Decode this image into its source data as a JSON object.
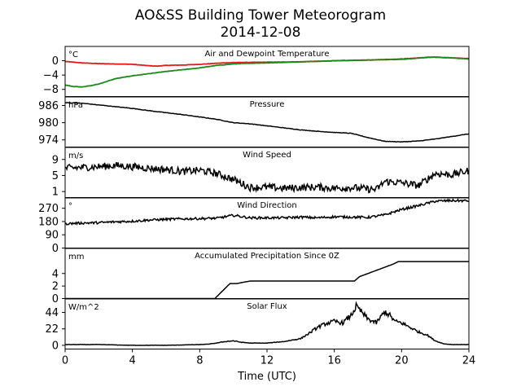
{
  "title_line1": "AO&SS Building Tower Meteorogram",
  "title_line2": "2014-12-08",
  "chart_data": {
    "type": "line",
    "xlabel": "Time (UTC)",
    "xlim": [
      0,
      24
    ],
    "xticks": [
      0,
      4,
      8,
      12,
      16,
      20,
      24
    ],
    "panels": [
      {
        "title": "Air and Dewpoint Temperature",
        "unit": "°C",
        "ylim": [
          -10,
          4
        ],
        "yticks": [
          0,
          -4,
          -8
        ],
        "series": [
          {
            "color": "#e31a1c",
            "x": [
              0,
              1,
              2,
              3,
              4,
              5,
              5.5,
              6,
              7,
              8,
              9,
              10,
              12,
              14,
              16,
              18,
              20,
              21,
              22,
              23,
              24
            ],
            "y": [
              -0.2,
              -0.6,
              -0.8,
              -0.9,
              -1.0,
              -1.4,
              -1.5,
              -1.3,
              -1.2,
              -1.0,
              -0.7,
              -0.5,
              -0.4,
              -0.3,
              0,
              0.2,
              0.5,
              0.8,
              1.0,
              0.8,
              0.6
            ]
          },
          {
            "color": "#1a8a1a",
            "x": [
              0,
              0.5,
              1,
              1.5,
              2,
              3,
              4,
              5,
              6,
              7,
              8,
              9,
              10,
              11,
              12,
              14,
              16,
              18,
              20,
              21,
              21.5,
              22,
              23,
              24
            ],
            "y": [
              -6.8,
              -7.2,
              -7.3,
              -7.0,
              -6.5,
              -5.0,
              -4.2,
              -3.6,
              -3.0,
              -2.5,
              -2.0,
              -1.3,
              -0.9,
              -0.7,
              -0.6,
              -0.3,
              0.0,
              0.2,
              0.4,
              0.7,
              1.0,
              1.0,
              0.8,
              0.5
            ]
          }
        ]
      },
      {
        "title": "Pressure",
        "unit": "hPa",
        "ylim": [
          971.5,
          989
        ],
        "yticks": [
          986,
          980,
          974
        ],
        "series": [
          {
            "color": "#000000",
            "x": [
              0,
              1,
              2,
              3,
              4,
              5,
              6,
              7,
              8,
              9,
              10,
              11,
              12,
              13,
              14,
              15,
              16,
              17,
              18,
              19,
              20,
              21,
              22,
              23,
              24
            ],
            "y": [
              987.0,
              986.8,
              986.2,
              985.6,
              985.0,
              984.2,
              983.5,
              982.8,
              982.0,
              981.2,
              980.0,
              979.6,
              978.9,
              978.2,
              977.5,
              977.0,
              976.6,
              976.3,
              974.8,
              973.5,
              973.3,
              973.6,
              974.3,
              975.2,
              976.1
            ]
          }
        ]
      },
      {
        "title": "Wind Speed",
        "unit": "m/s",
        "ylim": [
          -0.5,
          12
        ],
        "yticks": [
          9,
          5,
          1
        ],
        "series": [
          {
            "color": "#000000",
            "x": [
              0,
              1,
              2,
              3,
              4,
              5,
              6,
              7,
              8,
              9,
              10,
              11,
              12,
              13,
              14,
              15,
              16,
              17,
              18,
              18.5,
              19,
              20,
              21,
              22,
              23,
              24
            ],
            "y": [
              6.8,
              7.0,
              7.2,
              7.5,
              7.2,
              6.8,
              6.5,
              6.0,
              6.3,
              5.5,
              4.0,
              2.0,
              2.1,
              1.8,
              2.0,
              2.1,
              1.8,
              2.0,
              1.6,
              1.5,
              3.5,
              3.2,
              2.5,
              5.5,
              5.2,
              6.2
            ]
          }
        ]
      },
      {
        "title": "Wind Direction",
        "unit": "°",
        "ylim": [
          0,
          340
        ],
        "yticks": [
          270,
          180,
          90,
          0
        ],
        "series": [
          {
            "color": "#000000",
            "x": [
              0,
              1,
              2,
              3,
              4,
              5,
              6,
              7,
              8,
              9,
              10,
              11,
              12,
              13,
              14,
              15,
              16,
              17,
              18,
              19,
              20,
              21,
              22,
              23,
              24
            ],
            "y": [
              165,
              170,
              172,
              178,
              182,
              190,
              195,
              198,
              200,
              202,
              222,
              205,
              205,
              205,
              210,
              205,
              212,
              210,
              208,
              225,
              262,
              288,
              318,
              322,
              320
            ]
          }
        ]
      },
      {
        "title": "Accumulated Precipitation Since 0Z",
        "unit": "mm",
        "ylim": [
          0,
          8
        ],
        "yticks": [
          4,
          2,
          0
        ],
        "series": [
          {
            "color": "#000000",
            "x": [
              0,
              8.9,
              9.2,
              9.5,
              9.8,
              10.2,
              11,
              12,
              13,
              14,
              15,
              16,
              17.2,
              17.5,
              17.8,
              18.2,
              18.6,
              19.0,
              19.5,
              19.8,
              20.2,
              21,
              22,
              23,
              24
            ],
            "y": [
              0,
              0,
              0.8,
              1.6,
              2.4,
              2.4,
              2.8,
              2.8,
              2.8,
              2.8,
              2.8,
              2.8,
              2.8,
              3.5,
              3.8,
              4.2,
              4.6,
              5.0,
              5.5,
              5.9,
              5.9,
              5.9,
              5.9,
              5.9,
              5.9
            ]
          }
        ]
      },
      {
        "title": "Solar Flux",
        "unit": "W/m^2",
        "ylim": [
          -5,
          62
        ],
        "yticks": [
          44,
          22,
          0
        ],
        "series": [
          {
            "color": "#000000",
            "x": [
              0,
              1,
              2,
              3,
              4,
              5,
              6,
              7,
              8,
              8.5,
              9,
              9.5,
              10,
              10.5,
              11,
              12,
              13,
              14,
              14.5,
              15,
              15.5,
              16,
              16.5,
              17,
              17.3,
              17.6,
              18,
              18.5,
              19,
              19.3,
              19.6,
              20,
              20.5,
              21,
              21.5,
              22,
              22.5,
              23,
              24
            ],
            "y": [
              1,
              1,
              1,
              0.5,
              0,
              0,
              0,
              0.5,
              1,
              1.5,
              3,
              5,
              6,
              4,
              3,
              3,
              5,
              9,
              16,
              24,
              29,
              32,
              30,
              40,
              52,
              45,
              35,
              30,
              45,
              40,
              32,
              30,
              24,
              18,
              14,
              6,
              2,
              1,
              1
            ]
          }
        ]
      }
    ]
  }
}
